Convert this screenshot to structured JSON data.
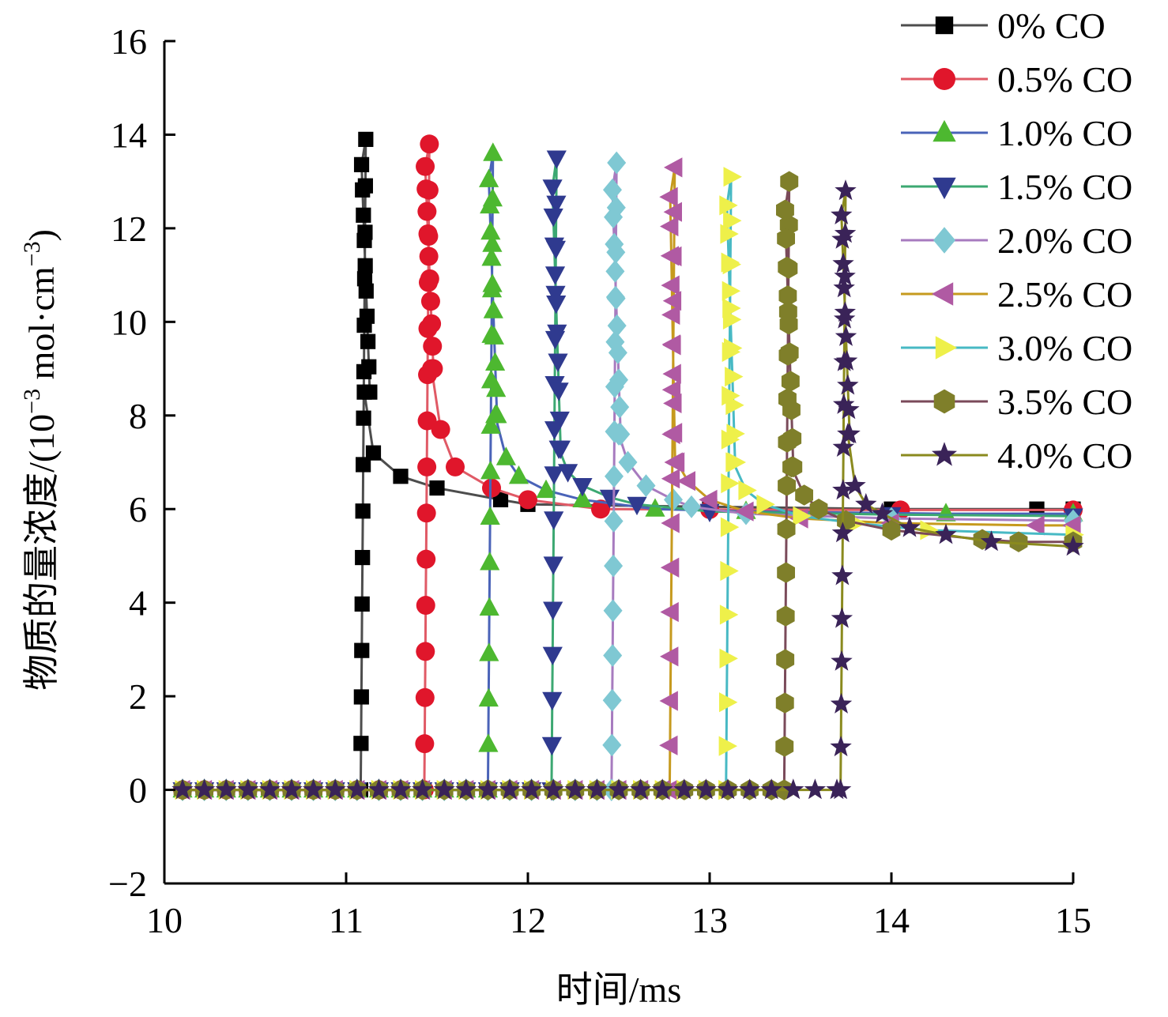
{
  "chart_data": {
    "type": "line",
    "xlabel": "时间/ms",
    "ylabel": "物质的量浓度/(10⁻³ mol·cm⁻³)",
    "ylabel_parts": {
      "prefix": "物质的量浓度/(10",
      "exp1": "−3",
      "mid": " mol·cm",
      "exp2": "−3",
      "suffix": ")"
    },
    "xlim": [
      10,
      15
    ],
    "ylim": [
      -2,
      16
    ],
    "xticks": [
      "10",
      "11",
      "12",
      "13",
      "14",
      "15"
    ],
    "yticks": [
      "-2",
      "0",
      "2",
      "4",
      "6",
      "8",
      "10",
      "12",
      "14",
      "16"
    ],
    "grid": false,
    "legend_position": "top-right",
    "series": [
      {
        "name": "0% CO",
        "color": "#4d4d4d",
        "marker_color": "#000000",
        "marker": "square",
        "ignition": 11.08,
        "peak": 13.9,
        "tail_delay": 0.05,
        "final": 6.0,
        "settle": [
          [
            11.1,
            8.5
          ],
          [
            11.15,
            7.2
          ],
          [
            11.3,
            6.7
          ],
          [
            11.5,
            6.45
          ],
          [
            11.85,
            6.2
          ],
          [
            12.0,
            6.1
          ],
          [
            13.0,
            6.05
          ],
          [
            14.0,
            6.0
          ],
          [
            14.8,
            6.0
          ],
          [
            15.0,
            6.0
          ]
        ]
      },
      {
        "name": "0.5% CO",
        "color": "#e05a66",
        "marker_color": "#e0162b",
        "marker": "circle",
        "ignition": 11.43,
        "peak": 13.8,
        "tail_delay": 0.05,
        "final": 5.98,
        "settle": [
          [
            11.47,
            9.0
          ],
          [
            11.52,
            7.7
          ],
          [
            11.6,
            6.9
          ],
          [
            11.8,
            6.45
          ],
          [
            12.0,
            6.2
          ],
          [
            12.4,
            6.0
          ],
          [
            13.0,
            5.99
          ],
          [
            14.05,
            5.98
          ],
          [
            15.0,
            5.98
          ]
        ]
      },
      {
        "name": "1.0% CO",
        "color": "#4a63b8",
        "marker_color": "#4db830",
        "marker": "triangle-up",
        "ignition": 11.78,
        "peak": 13.6,
        "tail_delay": 0.05,
        "final": 5.9,
        "settle": [
          [
            11.82,
            8.0
          ],
          [
            11.88,
            7.1
          ],
          [
            11.95,
            6.7
          ],
          [
            12.1,
            6.4
          ],
          [
            12.3,
            6.2
          ],
          [
            12.7,
            6.0
          ],
          [
            13.2,
            5.95
          ],
          [
            14.3,
            5.9
          ],
          [
            15.0,
            5.9
          ]
        ]
      },
      {
        "name": "1.5% CO",
        "color": "#3ca872",
        "marker_color": "#2f3a8f",
        "marker": "triangle-down",
        "ignition": 12.13,
        "peak": 13.5,
        "tail_delay": 0.05,
        "final": 5.85,
        "settle": [
          [
            12.17,
            7.3
          ],
          [
            12.22,
            6.8
          ],
          [
            12.3,
            6.5
          ],
          [
            12.45,
            6.25
          ],
          [
            12.6,
            6.1
          ],
          [
            13.0,
            5.95
          ],
          [
            14.0,
            5.88
          ],
          [
            15.0,
            5.85
          ]
        ]
      },
      {
        "name": "2.0% CO",
        "color": "#a77bbf",
        "marker_color": "#7fc8d3",
        "marker": "diamond",
        "ignition": 12.46,
        "peak": 13.4,
        "tail_delay": 0.05,
        "final": 5.75,
        "settle": [
          [
            12.5,
            7.6
          ],
          [
            12.55,
            7.0
          ],
          [
            12.65,
            6.5
          ],
          [
            12.8,
            6.2
          ],
          [
            12.9,
            6.05
          ],
          [
            13.2,
            5.9
          ],
          [
            14.0,
            5.8
          ],
          [
            15.0,
            5.75
          ]
        ]
      },
      {
        "name": "2.5% CO",
        "color": "#c69a1e",
        "marker_color": "#b05aa3",
        "marker": "triangle-left",
        "ignition": 12.78,
        "peak": 13.3,
        "tail_delay": 0.03,
        "final": 5.65,
        "settle": [
          [
            12.82,
            7.0
          ],
          [
            12.88,
            6.6
          ],
          [
            13.0,
            6.2
          ],
          [
            13.2,
            5.95
          ],
          [
            13.5,
            5.8
          ],
          [
            14.0,
            5.7
          ],
          [
            14.8,
            5.65
          ],
          [
            15.0,
            5.65
          ]
        ]
      },
      {
        "name": "3.0% CO",
        "color": "#47b9c4",
        "marker_color": "#eef04a",
        "marker": "triangle-right",
        "ignition": 13.09,
        "peak": 13.1,
        "tail_delay": 0.05,
        "final": 5.45,
        "settle": [
          [
            13.13,
            7.0
          ],
          [
            13.2,
            6.4
          ],
          [
            13.3,
            6.1
          ],
          [
            13.5,
            5.85
          ],
          [
            13.8,
            5.7
          ],
          [
            14.2,
            5.55
          ],
          [
            15.0,
            5.45
          ]
        ]
      },
      {
        "name": "3.5% CO",
        "color": "#7a4a5a",
        "marker_color": "#7f7f2a",
        "marker": "hexagon",
        "ignition": 13.41,
        "peak": 13.0,
        "tail_delay": 0.05,
        "final": 5.3,
        "settle": [
          [
            13.45,
            6.9
          ],
          [
            13.52,
            6.3
          ],
          [
            13.6,
            6.0
          ],
          [
            13.75,
            5.75
          ],
          [
            14.0,
            5.55
          ],
          [
            14.5,
            5.35
          ],
          [
            14.7,
            5.3
          ],
          [
            15.0,
            5.3
          ]
        ]
      },
      {
        "name": "4.0% CO",
        "color": "#8a8a1e",
        "marker_color": "#3a2358",
        "marker": "star",
        "ignition": 13.72,
        "peak": 12.8,
        "tail_delay": 0.05,
        "final": 5.2,
        "settle": [
          [
            13.76,
            7.6
          ],
          [
            13.8,
            6.5
          ],
          [
            13.86,
            6.1
          ],
          [
            13.95,
            5.9
          ],
          [
            14.1,
            5.6
          ],
          [
            14.3,
            5.45
          ],
          [
            14.55,
            5.3
          ],
          [
            15.0,
            5.2
          ]
        ]
      }
    ]
  }
}
